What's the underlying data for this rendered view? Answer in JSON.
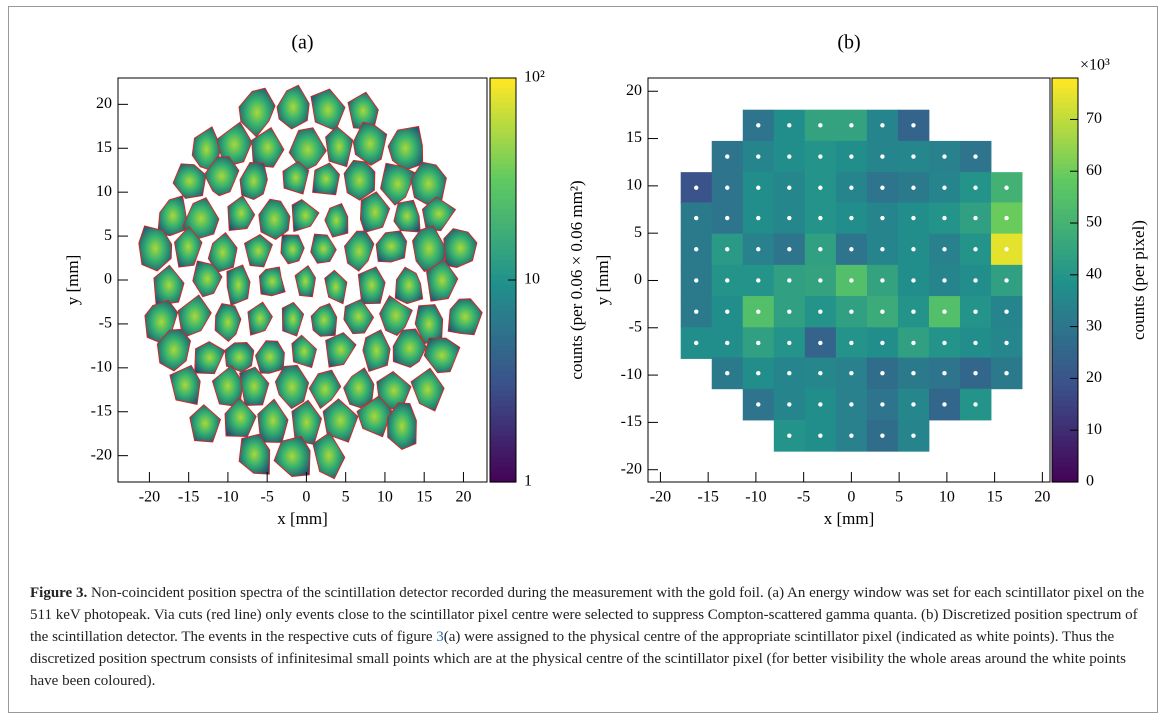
{
  "chart_data": [
    {
      "type": "density",
      "panel": "(a)",
      "xlabel": "x [mm]",
      "ylabel": "y [mm]",
      "xlim": [
        -24,
        23
      ],
      "ylim": [
        -23,
        23
      ],
      "xticks": [
        -20,
        -15,
        -10,
        -5,
        0,
        5,
        10,
        15,
        20
      ],
      "yticks": [
        -20,
        -15,
        -10,
        -5,
        0,
        5,
        10,
        15,
        20
      ],
      "colorbar": {
        "label": "counts (per 0.06 × 0.06 mm²)",
        "log": true,
        "lim": [
          1,
          100
        ],
        "ticks": [
          1,
          10,
          {
            "value": 100,
            "label": "10²"
          }
        ]
      }
    },
    {
      "type": "heatmap",
      "panel": "(b)",
      "xlabel": "x [mm]",
      "ylabel": "y [mm]",
      "xlim": [
        -21.3,
        20.8
      ],
      "ylim": [
        -21.3,
        21.4
      ],
      "xticks": [
        -20,
        -15,
        -10,
        -5,
        0,
        5,
        10,
        15,
        20
      ],
      "yticks": [
        -20,
        -15,
        -10,
        -5,
        0,
        5,
        10,
        15,
        20
      ],
      "x": [
        -16.25,
        -13,
        -9.75,
        -6.5,
        -3.25,
        0,
        3.25,
        6.5,
        9.75,
        13,
        16.25
      ],
      "y": [
        16.4,
        13.1,
        9.8,
        6.6,
        3.3,
        0,
        -3.3,
        -6.6,
        -9.8,
        -13.1,
        -16.4
      ],
      "z": [
        [
          null,
          null,
          30,
          38,
          45,
          45,
          35,
          25,
          null,
          null,
          null
        ],
        [
          null,
          30,
          35,
          38,
          40,
          38,
          35,
          36,
          34,
          30,
          null
        ],
        [
          20,
          30,
          38,
          36,
          40,
          35,
          30,
          32,
          35,
          40,
          50
        ],
        [
          32,
          30,
          38,
          36,
          40,
          38,
          35,
          38,
          40,
          44,
          60
        ],
        [
          32,
          42,
          34,
          30,
          44,
          30,
          35,
          38,
          34,
          40,
          75
        ],
        [
          32,
          40,
          40,
          44,
          45,
          55,
          45,
          38,
          35,
          38,
          44
        ],
        [
          32,
          38,
          55,
          44,
          40,
          44,
          48,
          40,
          55,
          40,
          35
        ],
        [
          38,
          38,
          44,
          40,
          25,
          40,
          38,
          44,
          40,
          38,
          36
        ],
        [
          null,
          32,
          38,
          35,
          36,
          34,
          28,
          32,
          30,
          26,
          32
        ],
        [
          null,
          null,
          30,
          35,
          38,
          34,
          30,
          36,
          26,
          40,
          null
        ],
        [
          null,
          null,
          null,
          40,
          38,
          34,
          28,
          35,
          null,
          null,
          null
        ]
      ],
      "colorbar": {
        "label": "counts (per pixel)",
        "multiplier": "×10³",
        "log": false,
        "lim": [
          0,
          78
        ],
        "ticks": [
          0,
          10,
          20,
          30,
          40,
          50,
          60,
          70
        ]
      }
    }
  ],
  "caption": {
    "label": "Figure 3.",
    "text1": " Non-coincident position spectra of the scintillation detector recorded during the measurement with the gold foil. (a)  An energy window was set for each scintillator pixel on the 511  keV photopeak. Via cuts (red line) only events close to the scintillator pixel centre were selected to suppress Compton-scattered gamma quanta. (b)  Discretized position spectrum of the scintillation detector. The events in the respective cuts of figure ",
    "ref": "3",
    "text2": "(a) were assigned to the physical centre of the appropriate scintillator pixel (indicated as white points). Thus the discretized position spectrum consists of infinitesimal small points which are at the physical centre of the scintillator pixel (for better visibility the whole areas around the white points have been coloured)."
  }
}
